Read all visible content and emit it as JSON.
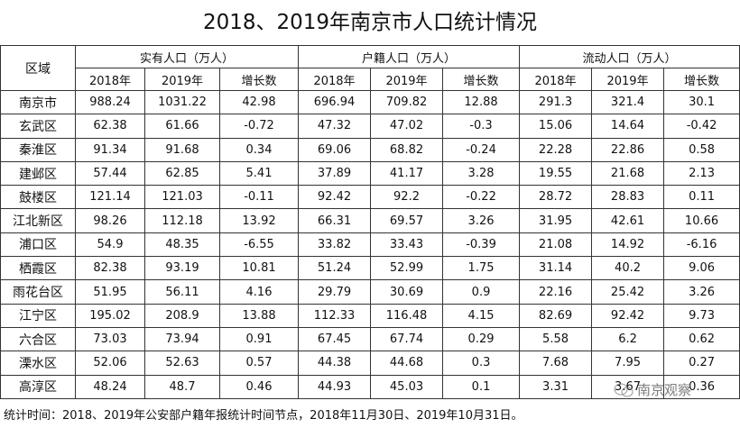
{
  "title": "2018、2019年南京市人口统计情况",
  "header": {
    "region": "区域",
    "groups": [
      {
        "name": "实有人口（万人）",
        "subs": [
          "2018年",
          "2019年",
          "增长数"
        ]
      },
      {
        "name": "户籍人口（万人）",
        "subs": [
          "2018年",
          "2019年",
          "增长数"
        ]
      },
      {
        "name": "流动人口（万人）",
        "subs": [
          "2018年",
          "2019年",
          "增长数"
        ]
      }
    ]
  },
  "rows": [
    [
      "南京市",
      "988.24",
      "1031.22",
      "42.98",
      "696.94",
      "709.82",
      "12.88",
      "291.3",
      "321.4",
      "30.1"
    ],
    [
      "玄武区",
      "62.38",
      "61.66",
      "-0.72",
      "47.32",
      "47.02",
      "-0.3",
      "15.06",
      "14.64",
      "-0.42"
    ],
    [
      "秦淮区",
      "91.34",
      "91.68",
      "0.34",
      "69.06",
      "68.82",
      "-0.24",
      "22.28",
      "22.86",
      "0.58"
    ],
    [
      "建邺区",
      "57.44",
      "62.85",
      "5.41",
      "37.89",
      "41.17",
      "3.28",
      "19.55",
      "21.68",
      "2.13"
    ],
    [
      "鼓楼区",
      "121.14",
      "121.03",
      "-0.11",
      "92.42",
      "92.2",
      "-0.22",
      "28.72",
      "28.83",
      "0.11"
    ],
    [
      "江北新区",
      "98.26",
      "112.18",
      "13.92",
      "66.31",
      "69.57",
      "3.26",
      "31.95",
      "42.61",
      "10.66"
    ],
    [
      "浦口区",
      "54.9",
      "48.35",
      "-6.55",
      "33.82",
      "33.43",
      "-0.39",
      "21.08",
      "14.92",
      "-6.16"
    ],
    [
      "栖霞区",
      "82.38",
      "93.19",
      "10.81",
      "51.24",
      "52.99",
      "1.75",
      "31.14",
      "40.2",
      "9.06"
    ],
    [
      "雨花台区",
      "51.95",
      "56.11",
      "4.16",
      "29.79",
      "30.69",
      "0.9",
      "22.16",
      "25.42",
      "3.26"
    ],
    [
      "江宁区",
      "195.02",
      "208.9",
      "13.88",
      "112.33",
      "116.48",
      "4.15",
      "82.69",
      "92.42",
      "9.73"
    ],
    [
      "六合区",
      "73.03",
      "73.94",
      "0.91",
      "67.45",
      "67.74",
      "0.29",
      "5.58",
      "6.2",
      "0.62"
    ],
    [
      "溧水区",
      "52.06",
      "52.63",
      "0.57",
      "44.38",
      "44.68",
      "0.3",
      "7.68",
      "7.95",
      "0.27"
    ],
    [
      "高淳区",
      "48.24",
      "48.7",
      "0.46",
      "44.93",
      "45.03",
      "0.1",
      "3.31",
      "3.67",
      "0.36"
    ]
  ],
  "footnote": "统计时间：2018、2019年公安部户籍年报统计时间节点，2018年11月30日、2019年10月31日。",
  "watermark": "南京观察"
}
